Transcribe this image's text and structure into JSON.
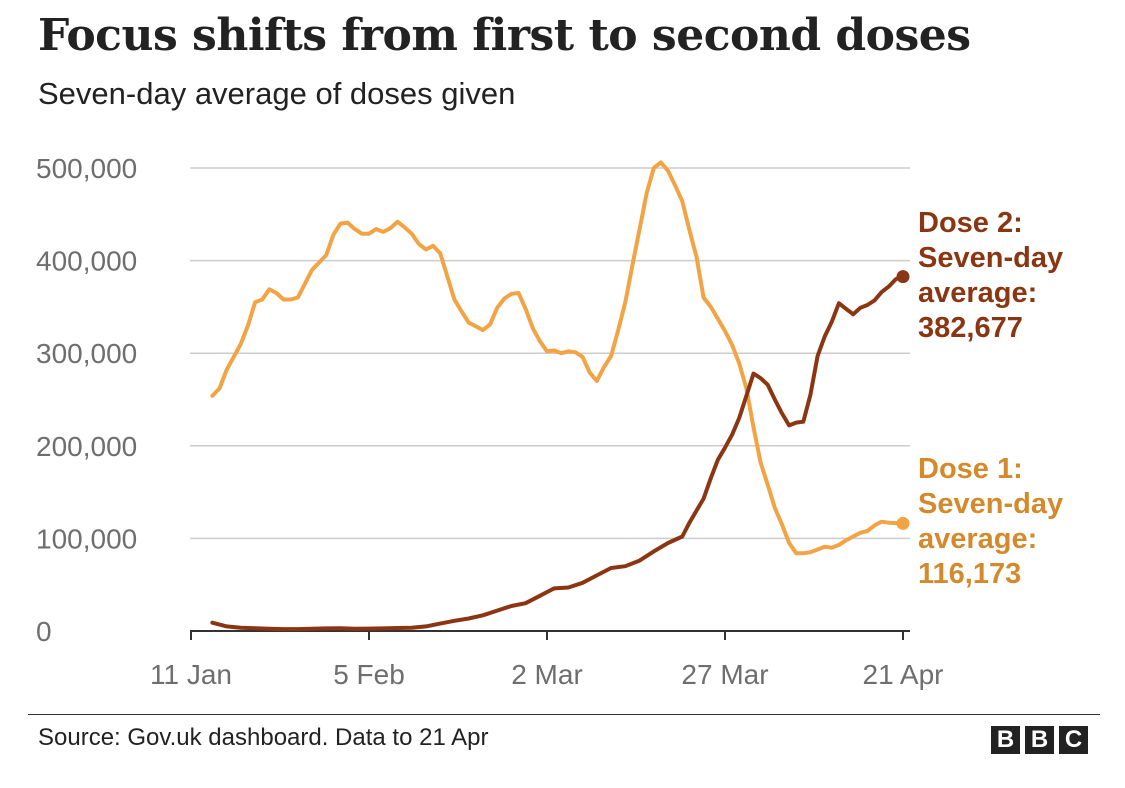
{
  "title": "Focus shifts from first to second doses",
  "subtitle": "Seven-day average of doses given",
  "source": "Source: Gov.uk dashboard. Data to 21 Apr",
  "logo": [
    "B",
    "B",
    "C"
  ],
  "colors": {
    "dose1": "#f2a444",
    "dose2": "#8a3612",
    "dose1_label": "#d48a2c",
    "dose2_label": "#8a3612",
    "grid": "#cccccc",
    "axis": "#333333"
  },
  "chart_data": {
    "type": "line",
    "x_unit": "day",
    "x_ticks": [
      {
        "label": "11 Jan",
        "date": "2021-01-11"
      },
      {
        "label": "5 Feb",
        "date": "2021-02-05"
      },
      {
        "label": "2 Mar",
        "date": "2021-03-02"
      },
      {
        "label": "27 Mar",
        "date": "2021-03-27"
      },
      {
        "label": "21 Apr",
        "date": "2021-04-21"
      }
    ],
    "y_ticks": [
      {
        "label": "0",
        "value": 0
      },
      {
        "label": "100,000",
        "value": 100000
      },
      {
        "label": "200,000",
        "value": 200000
      },
      {
        "label": "300,000",
        "value": 300000
      },
      {
        "label": "400,000",
        "value": 400000
      },
      {
        "label": "500,000",
        "value": 500000
      }
    ],
    "xlim": [
      "2021-01-11",
      "2021-04-22"
    ],
    "ylim": [
      0,
      500000
    ],
    "grid": true,
    "series": [
      {
        "name": "Dose 1",
        "color": "#f2a444",
        "label_lines": [
          "Dose 1:",
          "Seven-day",
          "average:",
          "116,173"
        ],
        "points": [
          [
            "2021-01-14",
            254000
          ],
          [
            "2021-01-15",
            262000
          ],
          [
            "2021-01-16",
            282000
          ],
          [
            "2021-01-17",
            296000
          ],
          [
            "2021-01-18",
            310000
          ],
          [
            "2021-01-19",
            330000
          ],
          [
            "2021-01-20",
            355000
          ],
          [
            "2021-01-21",
            358000
          ],
          [
            "2021-01-22",
            369000
          ],
          [
            "2021-01-23",
            365000
          ],
          [
            "2021-01-24",
            358000
          ],
          [
            "2021-01-25",
            358000
          ],
          [
            "2021-01-26",
            360000
          ],
          [
            "2021-01-27",
            375000
          ],
          [
            "2021-01-28",
            390000
          ],
          [
            "2021-01-29",
            398000
          ],
          [
            "2021-01-30",
            406000
          ],
          [
            "2021-01-31",
            428000
          ],
          [
            "2021-02-01",
            440000
          ],
          [
            "2021-02-02",
            441000
          ],
          [
            "2021-02-03",
            434000
          ],
          [
            "2021-02-04",
            429000
          ],
          [
            "2021-02-05",
            429000
          ],
          [
            "2021-02-06",
            434000
          ],
          [
            "2021-02-07",
            431000
          ],
          [
            "2021-02-08",
            435000
          ],
          [
            "2021-02-09",
            442000
          ],
          [
            "2021-02-10",
            436000
          ],
          [
            "2021-02-11",
            429000
          ],
          [
            "2021-02-12",
            418000
          ],
          [
            "2021-02-13",
            412000
          ],
          [
            "2021-02-14",
            416000
          ],
          [
            "2021-02-15",
            408000
          ],
          [
            "2021-02-16",
            383000
          ],
          [
            "2021-02-17",
            358000
          ],
          [
            "2021-02-18",
            345000
          ],
          [
            "2021-02-19",
            333000
          ],
          [
            "2021-02-20",
            329000
          ],
          [
            "2021-02-21",
            325000
          ],
          [
            "2021-02-22",
            331000
          ],
          [
            "2021-02-23",
            349000
          ],
          [
            "2021-02-24",
            359000
          ],
          [
            "2021-02-25",
            364000
          ],
          [
            "2021-02-26",
            365000
          ],
          [
            "2021-02-27",
            348000
          ],
          [
            "2021-02-28",
            327000
          ],
          [
            "2021-03-01",
            313000
          ],
          [
            "2021-03-02",
            302000
          ],
          [
            "2021-03-03",
            303000
          ],
          [
            "2021-03-04",
            300000
          ],
          [
            "2021-03-05",
            302000
          ],
          [
            "2021-03-06",
            301000
          ],
          [
            "2021-03-07",
            296000
          ],
          [
            "2021-03-08",
            279000
          ],
          [
            "2021-03-09",
            270000
          ],
          [
            "2021-03-10",
            285000
          ],
          [
            "2021-03-11",
            297000
          ],
          [
            "2021-03-12",
            325000
          ],
          [
            "2021-03-13",
            355000
          ],
          [
            "2021-03-14",
            395000
          ],
          [
            "2021-03-15",
            434000
          ],
          [
            "2021-03-16",
            473000
          ],
          [
            "2021-03-17",
            500000
          ],
          [
            "2021-03-18",
            506000
          ],
          [
            "2021-03-19",
            497000
          ],
          [
            "2021-03-20",
            481000
          ],
          [
            "2021-03-21",
            464000
          ],
          [
            "2021-03-22",
            433000
          ],
          [
            "2021-03-23",
            404000
          ],
          [
            "2021-03-24",
            360000
          ],
          [
            "2021-03-25",
            350000
          ],
          [
            "2021-03-26",
            337000
          ],
          [
            "2021-03-27",
            324000
          ],
          [
            "2021-03-28",
            309000
          ],
          [
            "2021-03-29",
            289000
          ],
          [
            "2021-03-30",
            262000
          ],
          [
            "2021-03-31",
            220000
          ],
          [
            "2021-04-01",
            182000
          ],
          [
            "2021-04-02",
            158000
          ],
          [
            "2021-04-03",
            133000
          ],
          [
            "2021-04-04",
            115000
          ],
          [
            "2021-04-05",
            95000
          ],
          [
            "2021-04-06",
            84000
          ],
          [
            "2021-04-07",
            84000
          ],
          [
            "2021-04-08",
            85000
          ],
          [
            "2021-04-09",
            88000
          ],
          [
            "2021-04-10",
            91000
          ],
          [
            "2021-04-11",
            90000
          ],
          [
            "2021-04-12",
            93000
          ],
          [
            "2021-04-13",
            98000
          ],
          [
            "2021-04-14",
            102000
          ],
          [
            "2021-04-15",
            106000
          ],
          [
            "2021-04-16",
            108000
          ],
          [
            "2021-04-17",
            114000
          ],
          [
            "2021-04-18",
            118000
          ],
          [
            "2021-04-19",
            117000
          ],
          [
            "2021-04-20",
            116500
          ],
          [
            "2021-04-21",
            116173
          ]
        ]
      },
      {
        "name": "Dose 2",
        "color": "#8a3612",
        "label_lines": [
          "Dose 2:",
          "Seven-day",
          "average:",
          "382,677"
        ],
        "points": [
          [
            "2021-01-14",
            9000
          ],
          [
            "2021-01-16",
            5000
          ],
          [
            "2021-01-18",
            3500
          ],
          [
            "2021-01-20",
            3000
          ],
          [
            "2021-01-22",
            2500
          ],
          [
            "2021-01-24",
            2000
          ],
          [
            "2021-01-26",
            2000
          ],
          [
            "2021-01-28",
            2500
          ],
          [
            "2021-01-30",
            2800
          ],
          [
            "2021-02-01",
            3000
          ],
          [
            "2021-02-03",
            2500
          ],
          [
            "2021-02-05",
            2600
          ],
          [
            "2021-02-07",
            2800
          ],
          [
            "2021-02-09",
            3200
          ],
          [
            "2021-02-11",
            3600
          ],
          [
            "2021-02-13",
            5000
          ],
          [
            "2021-02-15",
            8000
          ],
          [
            "2021-02-17",
            11000
          ],
          [
            "2021-02-19",
            13500
          ],
          [
            "2021-02-21",
            17000
          ],
          [
            "2021-02-23",
            22000
          ],
          [
            "2021-02-25",
            27000
          ],
          [
            "2021-02-27",
            30000
          ],
          [
            "2021-03-01",
            38000
          ],
          [
            "2021-03-03",
            46000
          ],
          [
            "2021-03-05",
            47000
          ],
          [
            "2021-03-07",
            52000
          ],
          [
            "2021-03-09",
            60000
          ],
          [
            "2021-03-11",
            68000
          ],
          [
            "2021-03-13",
            70000
          ],
          [
            "2021-03-15",
            76000
          ],
          [
            "2021-03-17",
            86000
          ],
          [
            "2021-03-19",
            95000
          ],
          [
            "2021-03-21",
            102000
          ],
          [
            "2021-03-22",
            117000
          ],
          [
            "2021-03-23",
            130000
          ],
          [
            "2021-03-24",
            143000
          ],
          [
            "2021-03-25",
            165000
          ],
          [
            "2021-03-26",
            185000
          ],
          [
            "2021-03-27",
            198000
          ],
          [
            "2021-03-28",
            212000
          ],
          [
            "2021-03-29",
            230000
          ],
          [
            "2021-03-30",
            254000
          ],
          [
            "2021-03-31",
            278000
          ],
          [
            "2021-04-01",
            273000
          ],
          [
            "2021-04-02",
            266000
          ],
          [
            "2021-04-03",
            250000
          ],
          [
            "2021-04-04",
            235000
          ],
          [
            "2021-04-05",
            222000
          ],
          [
            "2021-04-06",
            225000
          ],
          [
            "2021-04-07",
            226000
          ],
          [
            "2021-04-08",
            255000
          ],
          [
            "2021-04-09",
            297000
          ],
          [
            "2021-04-10",
            318000
          ],
          [
            "2021-04-11",
            334000
          ],
          [
            "2021-04-12",
            354000
          ],
          [
            "2021-04-13",
            348000
          ],
          [
            "2021-04-14",
            342000
          ],
          [
            "2021-04-15",
            349000
          ],
          [
            "2021-04-16",
            352000
          ],
          [
            "2021-04-17",
            357000
          ],
          [
            "2021-04-18",
            366000
          ],
          [
            "2021-04-19",
            372000
          ],
          [
            "2021-04-20",
            380000
          ],
          [
            "2021-04-21",
            382677
          ]
        ]
      }
    ]
  }
}
